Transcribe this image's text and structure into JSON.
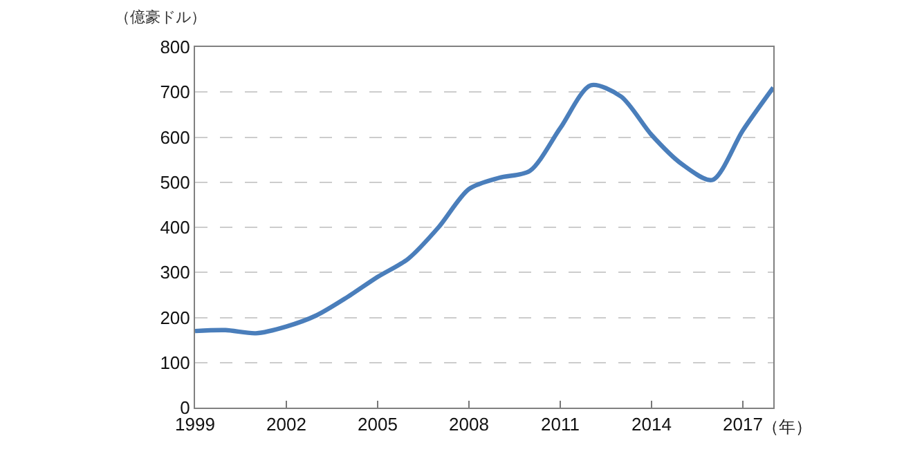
{
  "chart_data": {
    "type": "line",
    "ylabel": "（億豪ドル）",
    "xlabel": "（年）",
    "x": [
      1999,
      2000,
      2001,
      2002,
      2003,
      2004,
      2005,
      2006,
      2007,
      2008,
      2009,
      2010,
      2011,
      2012,
      2013,
      2014,
      2015,
      2016,
      2017,
      2018
    ],
    "series": [
      {
        "color": "#4a7ebb",
        "values": [
          170,
          172,
          165,
          180,
          205,
          245,
          290,
          330,
          400,
          485,
          510,
          525,
          620,
          715,
          690,
          605,
          540,
          505,
          615,
          710
        ]
      }
    ],
    "xlim": [
      1999,
      2018
    ],
    "xticks": [
      1999,
      2002,
      2005,
      2008,
      2011,
      2014,
      2017
    ],
    "ylim": [
      0,
      800
    ],
    "yticks": [
      0,
      100,
      200,
      300,
      400,
      500,
      600,
      700,
      800
    ],
    "grid": "y",
    "marker": "none",
    "line_style": "solid"
  }
}
